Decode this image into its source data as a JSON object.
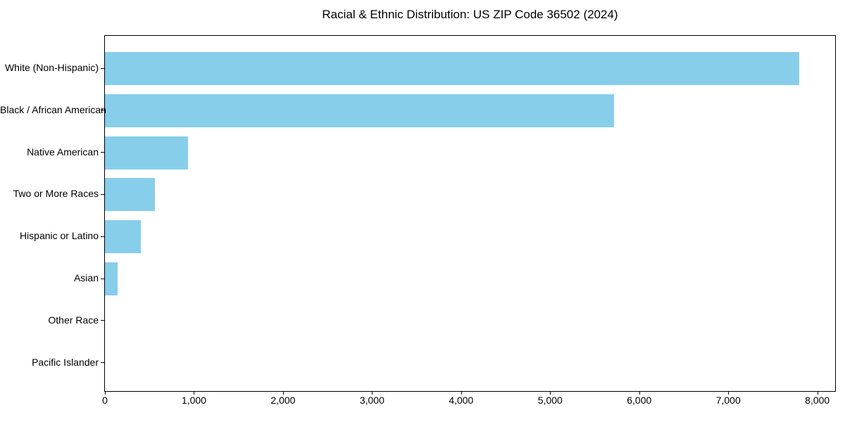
{
  "chart_data": {
    "type": "bar",
    "orientation": "horizontal",
    "title": "Racial & Ethnic Distribution: US ZIP Code 36502 (2024)",
    "xlabel": "",
    "ylabel": "",
    "categories": [
      "White (Non-Hispanic)",
      "Black / African American",
      "Native American",
      "Two or More Races",
      "Hispanic or Latino",
      "Asian",
      "Other Race",
      "Pacific Islander"
    ],
    "values": [
      7800,
      5720,
      935,
      560,
      400,
      145,
      0,
      0
    ],
    "xlim": [
      0,
      8200
    ],
    "x_ticks": [
      0,
      1000,
      2000,
      3000,
      4000,
      5000,
      6000,
      7000,
      8000
    ],
    "x_tick_labels": [
      "0",
      "1,000",
      "2,000",
      "3,000",
      "4,000",
      "5,000",
      "6,000",
      "7,000",
      "8,000"
    ],
    "bar_color": "#87CEEB",
    "spine_color": "#000000",
    "grid": false,
    "legend_position": "none"
  }
}
